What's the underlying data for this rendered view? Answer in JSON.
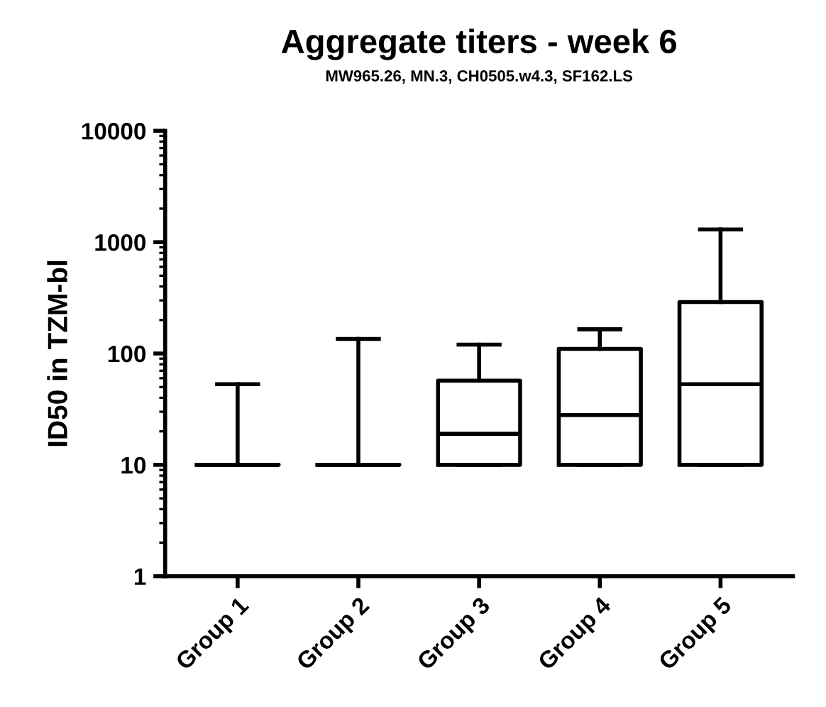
{
  "chart_data": {
    "type": "box",
    "title": "Aggregate titers - week 6",
    "subtitle": "MW965.26, MN.3, CH0505.w4.3, SF162.LS",
    "ylabel": "ID50 in TZM-bl",
    "categories": [
      "Group 1",
      "Group 2",
      "Group 3",
      "Group 4",
      "Group 5"
    ],
    "boxes": [
      {
        "low": 10,
        "q1": 10,
        "median": 10,
        "q3": 10,
        "high": 53
      },
      {
        "low": 10,
        "q1": 10,
        "median": 10,
        "q3": 10,
        "high": 135
      },
      {
        "low": 10,
        "q1": 10,
        "median": 19,
        "q3": 57,
        "high": 120
      },
      {
        "low": 10,
        "q1": 10,
        "median": 28,
        "q3": 110,
        "high": 165
      },
      {
        "low": 10,
        "q1": 10,
        "median": 53,
        "q3": 290,
        "high": 1300
      }
    ],
    "color": "#000000",
    "log": "y",
    "ylim": [
      1,
      10000
    ],
    "yticks": [
      1,
      10,
      100,
      1000,
      10000
    ]
  }
}
